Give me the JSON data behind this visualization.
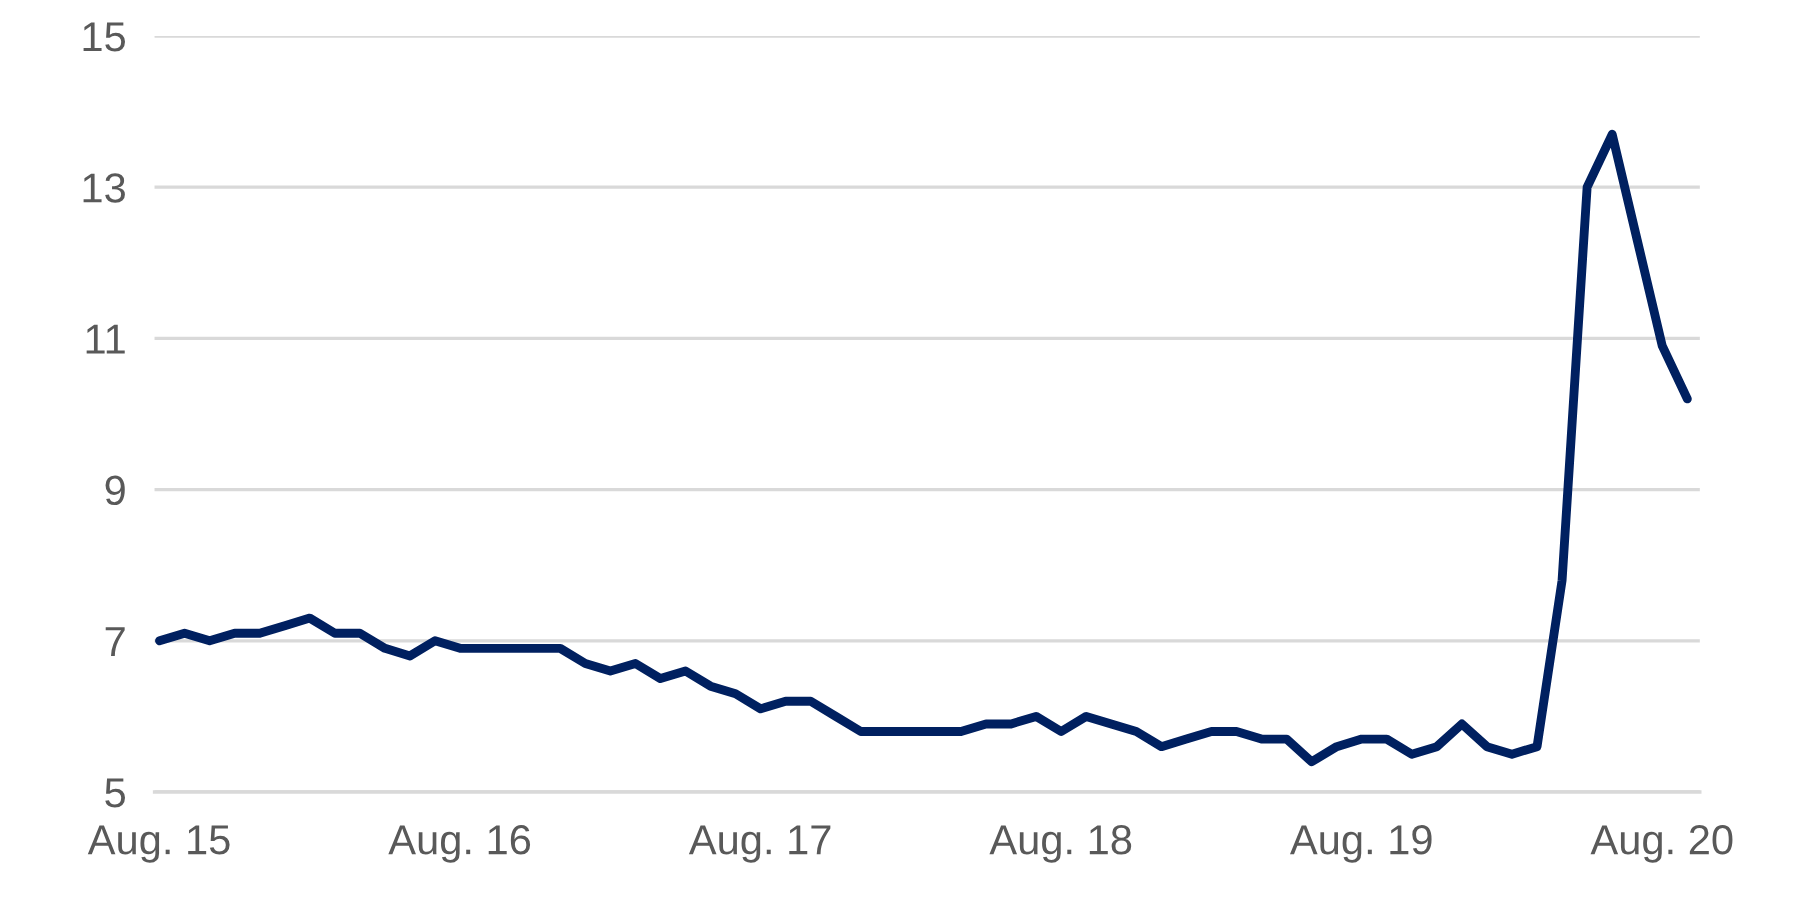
{
  "chart_data": {
    "type": "line",
    "categories": [
      "Aug. 15",
      null,
      null,
      null,
      null,
      null,
      null,
      null,
      null,
      null,
      null,
      null,
      "Aug. 16",
      null,
      null,
      null,
      null,
      null,
      null,
      null,
      null,
      null,
      null,
      null,
      "Aug. 17",
      null,
      null,
      null,
      null,
      null,
      null,
      null,
      null,
      null,
      null,
      null,
      "Aug. 18",
      null,
      null,
      null,
      null,
      null,
      null,
      null,
      null,
      null,
      null,
      null,
      "Aug. 19",
      null,
      null,
      null,
      null,
      null,
      null,
      null,
      null,
      null,
      null,
      null,
      "Aug. 20",
      null
    ],
    "series": [
      {
        "color": "#002060",
        "values": [
          7.0,
          7.1,
          7.0,
          7.1,
          7.1,
          7.2,
          7.3,
          7.1,
          7.1,
          6.9,
          6.8,
          7.0,
          6.9,
          6.9,
          6.9,
          6.9,
          6.9,
          6.7,
          6.6,
          6.7,
          6.5,
          6.6,
          6.4,
          6.3,
          6.1,
          6.2,
          6.2,
          6.0,
          5.8,
          5.8,
          5.8,
          5.8,
          5.8,
          5.9,
          5.9,
          6.0,
          5.8,
          6.0,
          5.9,
          5.8,
          5.6,
          5.7,
          5.8,
          5.8,
          5.7,
          5.7,
          5.4,
          5.6,
          5.7,
          5.7,
          5.5,
          5.6,
          5.9,
          5.6,
          5.5,
          5.6,
          7.8,
          13.0,
          13.7,
          12.3,
          10.9,
          10.2
        ]
      }
    ],
    "ylim": [
      5,
      15
    ],
    "yticks": [
      5,
      7,
      9,
      11,
      13,
      15
    ],
    "grid": "y",
    "marker": "none",
    "line_style": "solid"
  }
}
